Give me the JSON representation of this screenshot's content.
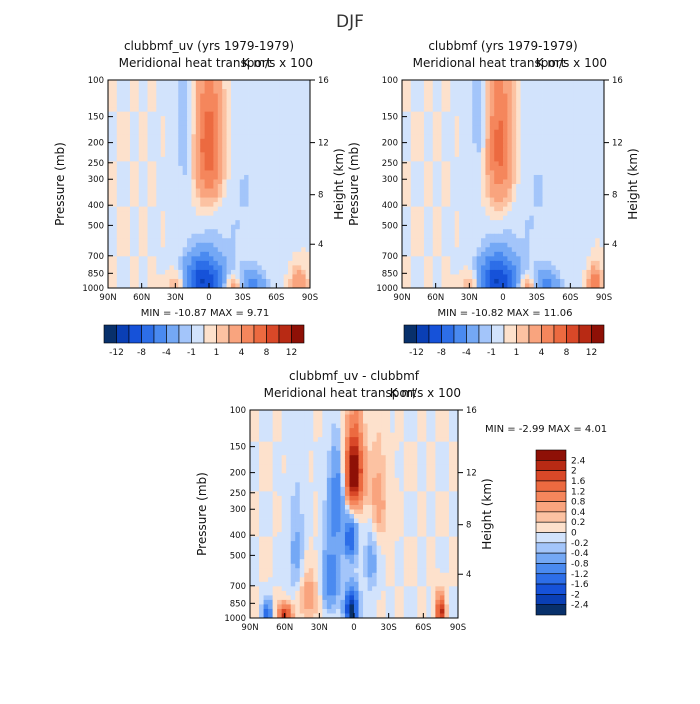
{
  "page_title": "DJF",
  "chart_data": [
    {
      "type": "heatmap",
      "title": "clubbmf_uv (yrs 1979-1979)",
      "subtitle": "Meridional heat transport",
      "units": "K m/s x 100",
      "xlabel": "",
      "ylabel": "Pressure (mb)",
      "ylabel_right": "Height (km)",
      "x_ticks": [
        "90N",
        "60N",
        "30N",
        "0",
        "30S",
        "60S",
        "90S"
      ],
      "y_ticks": [
        "100",
        "150",
        "200",
        "250",
        "300",
        "400",
        "500",
        "700",
        "850",
        "1000"
      ],
      "y_ticks_right": [
        "16",
        "12",
        "8",
        "4"
      ],
      "x_range": [
        90,
        -90
      ],
      "y_range": [
        100,
        1000
      ],
      "stats_text": "MIN = -10.87   MAX =   9.71",
      "colorbar": {
        "orientation": "horizontal",
        "labels": [
          "-12",
          "-8",
          "-4",
          "-1",
          "1",
          "4",
          "8",
          "12"
        ],
        "colors": [
          "#08306b",
          "#0a3fb5",
          "#1652d9",
          "#2d6ee8",
          "#4a8af0",
          "#74a8f5",
          "#a3c5fa",
          "#d2e3fc",
          "#fde1cc",
          "#fcc2a2",
          "#f9a47e",
          "#f5865c",
          "#ec6a40",
          "#d94828",
          "#b82a14",
          "#8e1006"
        ]
      },
      "features": [
        {
          "lat": 0,
          "p": 210,
          "v": 8,
          "w": 9,
          "h": 110
        },
        {
          "lat": 5,
          "p": 920,
          "v": -10,
          "w": 12,
          "h": 170
        },
        {
          "lat": -22,
          "p": 980,
          "v": 4,
          "w": 6,
          "h": 80
        },
        {
          "lat": -38,
          "p": 955,
          "v": -5,
          "w": 8,
          "h": 90
        },
        {
          "lat": -80,
          "p": 950,
          "v": 4,
          "w": 5,
          "h": 110
        },
        {
          "lat": 28,
          "p": 950,
          "v": 3,
          "w": 6,
          "h": 90
        },
        {
          "lat": 20,
          "p": 170,
          "v": -2,
          "w": 6,
          "h": 120
        },
        {
          "lat": -30,
          "p": 400,
          "v": -1,
          "w": 25,
          "h": 400
        }
      ]
    },
    {
      "type": "heatmap",
      "title": "clubbmf (yrs 1979-1979)",
      "subtitle": "Meridional heat transport",
      "units": "K m/s x 100",
      "xlabel": "",
      "ylabel": "Pressure (mb)",
      "ylabel_right": "Height (km)",
      "x_ticks": [
        "90N",
        "60N",
        "30N",
        "0",
        "30S",
        "60S",
        "90S"
      ],
      "y_ticks": [
        "100",
        "150",
        "200",
        "250",
        "300",
        "400",
        "500",
        "700",
        "850",
        "1000"
      ],
      "y_ticks_right": [
        "16",
        "12",
        "8",
        "4"
      ],
      "x_range": [
        90,
        -90
      ],
      "y_range": [
        100,
        1000
      ],
      "stats_text": "MIN = -10.82   MAX =  11.06",
      "colorbar": {
        "orientation": "horizontal",
        "labels": [
          "-12",
          "-8",
          "-4",
          "-1",
          "1",
          "4",
          "8",
          "12"
        ],
        "colors": [
          "#08306b",
          "#0a3fb5",
          "#1652d9",
          "#2d6ee8",
          "#4a8af0",
          "#74a8f5",
          "#a3c5fa",
          "#d2e3fc",
          "#fde1cc",
          "#fcc2a2",
          "#f9a47e",
          "#f5865c",
          "#ec6a40",
          "#d94828",
          "#b82a14",
          "#8e1006"
        ]
      },
      "features": [
        {
          "lat": 3,
          "p": 210,
          "v": 7,
          "w": 9,
          "h": 120
        },
        {
          "lat": 5,
          "p": 920,
          "v": -10,
          "w": 12,
          "h": 170
        },
        {
          "lat": -22,
          "p": 980,
          "v": 4,
          "w": 6,
          "h": 80
        },
        {
          "lat": -38,
          "p": 955,
          "v": -5,
          "w": 8,
          "h": 90
        },
        {
          "lat": -82,
          "p": 950,
          "v": 6,
          "w": 4,
          "h": 110
        },
        {
          "lat": 28,
          "p": 950,
          "v": 3,
          "w": 6,
          "h": 90
        },
        {
          "lat": 20,
          "p": 170,
          "v": -2,
          "w": 6,
          "h": 120
        },
        {
          "lat": -30,
          "p": 400,
          "v": -1,
          "w": 25,
          "h": 400
        }
      ]
    },
    {
      "type": "heatmap",
      "title": "clubbmf_uv - clubbmf",
      "subtitle": "Meridional heat transport",
      "units": "K m/s x 100",
      "xlabel": "",
      "ylabel": "Pressure (mb)",
      "ylabel_right": "Height (km)",
      "x_ticks": [
        "90N",
        "60N",
        "30N",
        "0",
        "30S",
        "60S",
        "90S"
      ],
      "y_ticks": [
        "100",
        "150",
        "200",
        "250",
        "300",
        "400",
        "500",
        "700",
        "850",
        "1000"
      ],
      "y_ticks_right": [
        "16",
        "12",
        "8",
        "4"
      ],
      "x_range": [
        90,
        -90
      ],
      "y_range": [
        100,
        1000
      ],
      "stats_text": "MIN =   -2.99   MAX =    4.01",
      "colorbar": {
        "orientation": "vertical",
        "labels": [
          "2.4",
          "2",
          "1.6",
          "1.2",
          "0.8",
          "0.4",
          "0.2",
          "0",
          "-0.2",
          "-0.4",
          "-0.8",
          "-1.2",
          "-1.6",
          "-2",
          "-2.4"
        ],
        "colors": [
          "#8e1006",
          "#b82a14",
          "#d94828",
          "#ec6a40",
          "#f5865c",
          "#f9a47e",
          "#fcc2a2",
          "#fde1cc",
          "#d2e3fc",
          "#a3c5fa",
          "#74a8f5",
          "#4a8af0",
          "#2d6ee8",
          "#1652d9",
          "#0a3fb5",
          "#08306b"
        ]
      },
      "features": [
        {
          "lat": 0,
          "p": 200,
          "v": 3.2,
          "w": 5,
          "h": 60
        },
        {
          "lat": 15,
          "p": 280,
          "v": -1.2,
          "w": 5,
          "h": 90
        },
        {
          "lat": 3,
          "p": 420,
          "v": -1.6,
          "w": 4,
          "h": 70
        },
        {
          "lat": 2,
          "p": 920,
          "v": -2.6,
          "w": 4,
          "h": 150
        },
        {
          "lat": 20,
          "p": 640,
          "v": -1.2,
          "w": 5,
          "h": 170
        },
        {
          "lat": -15,
          "p": 520,
          "v": -0.6,
          "w": 4,
          "h": 150
        },
        {
          "lat": -20,
          "p": 280,
          "v": 0.6,
          "w": 6,
          "h": 100
        },
        {
          "lat": -75,
          "p": 930,
          "v": 2.4,
          "w": 2.5,
          "h": 110
        },
        {
          "lat": 60,
          "p": 960,
          "v": 2.2,
          "w": 4,
          "h": 70
        },
        {
          "lat": 75,
          "p": 960,
          "v": -1.6,
          "w": 3,
          "h": 90
        },
        {
          "lat": 50,
          "p": 500,
          "v": -0.5,
          "w": 5,
          "h": 200
        },
        {
          "lat": 40,
          "p": 780,
          "v": 0.6,
          "w": 6,
          "h": 150
        }
      ]
    }
  ]
}
